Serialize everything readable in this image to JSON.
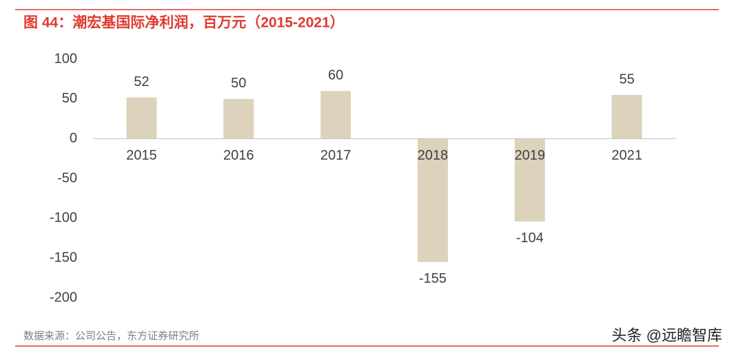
{
  "chart_data": {
    "type": "bar",
    "title": "图 44：潮宏基国际净利润，百万元（2015-2021）",
    "categories": [
      "2015",
      "2016",
      "2017",
      "2018",
      "2019",
      "2021"
    ],
    "values": [
      52,
      50,
      60,
      -155,
      -104,
      55
    ],
    "color": "#ddd3bc",
    "ylim": [
      -200,
      100
    ],
    "yticks": [
      -200,
      -150,
      -100,
      -50,
      0,
      50,
      100
    ],
    "grid": false,
    "source": "数据来源：公司公告，东方证券研究所",
    "watermark": "头条 @远瞻智库"
  }
}
